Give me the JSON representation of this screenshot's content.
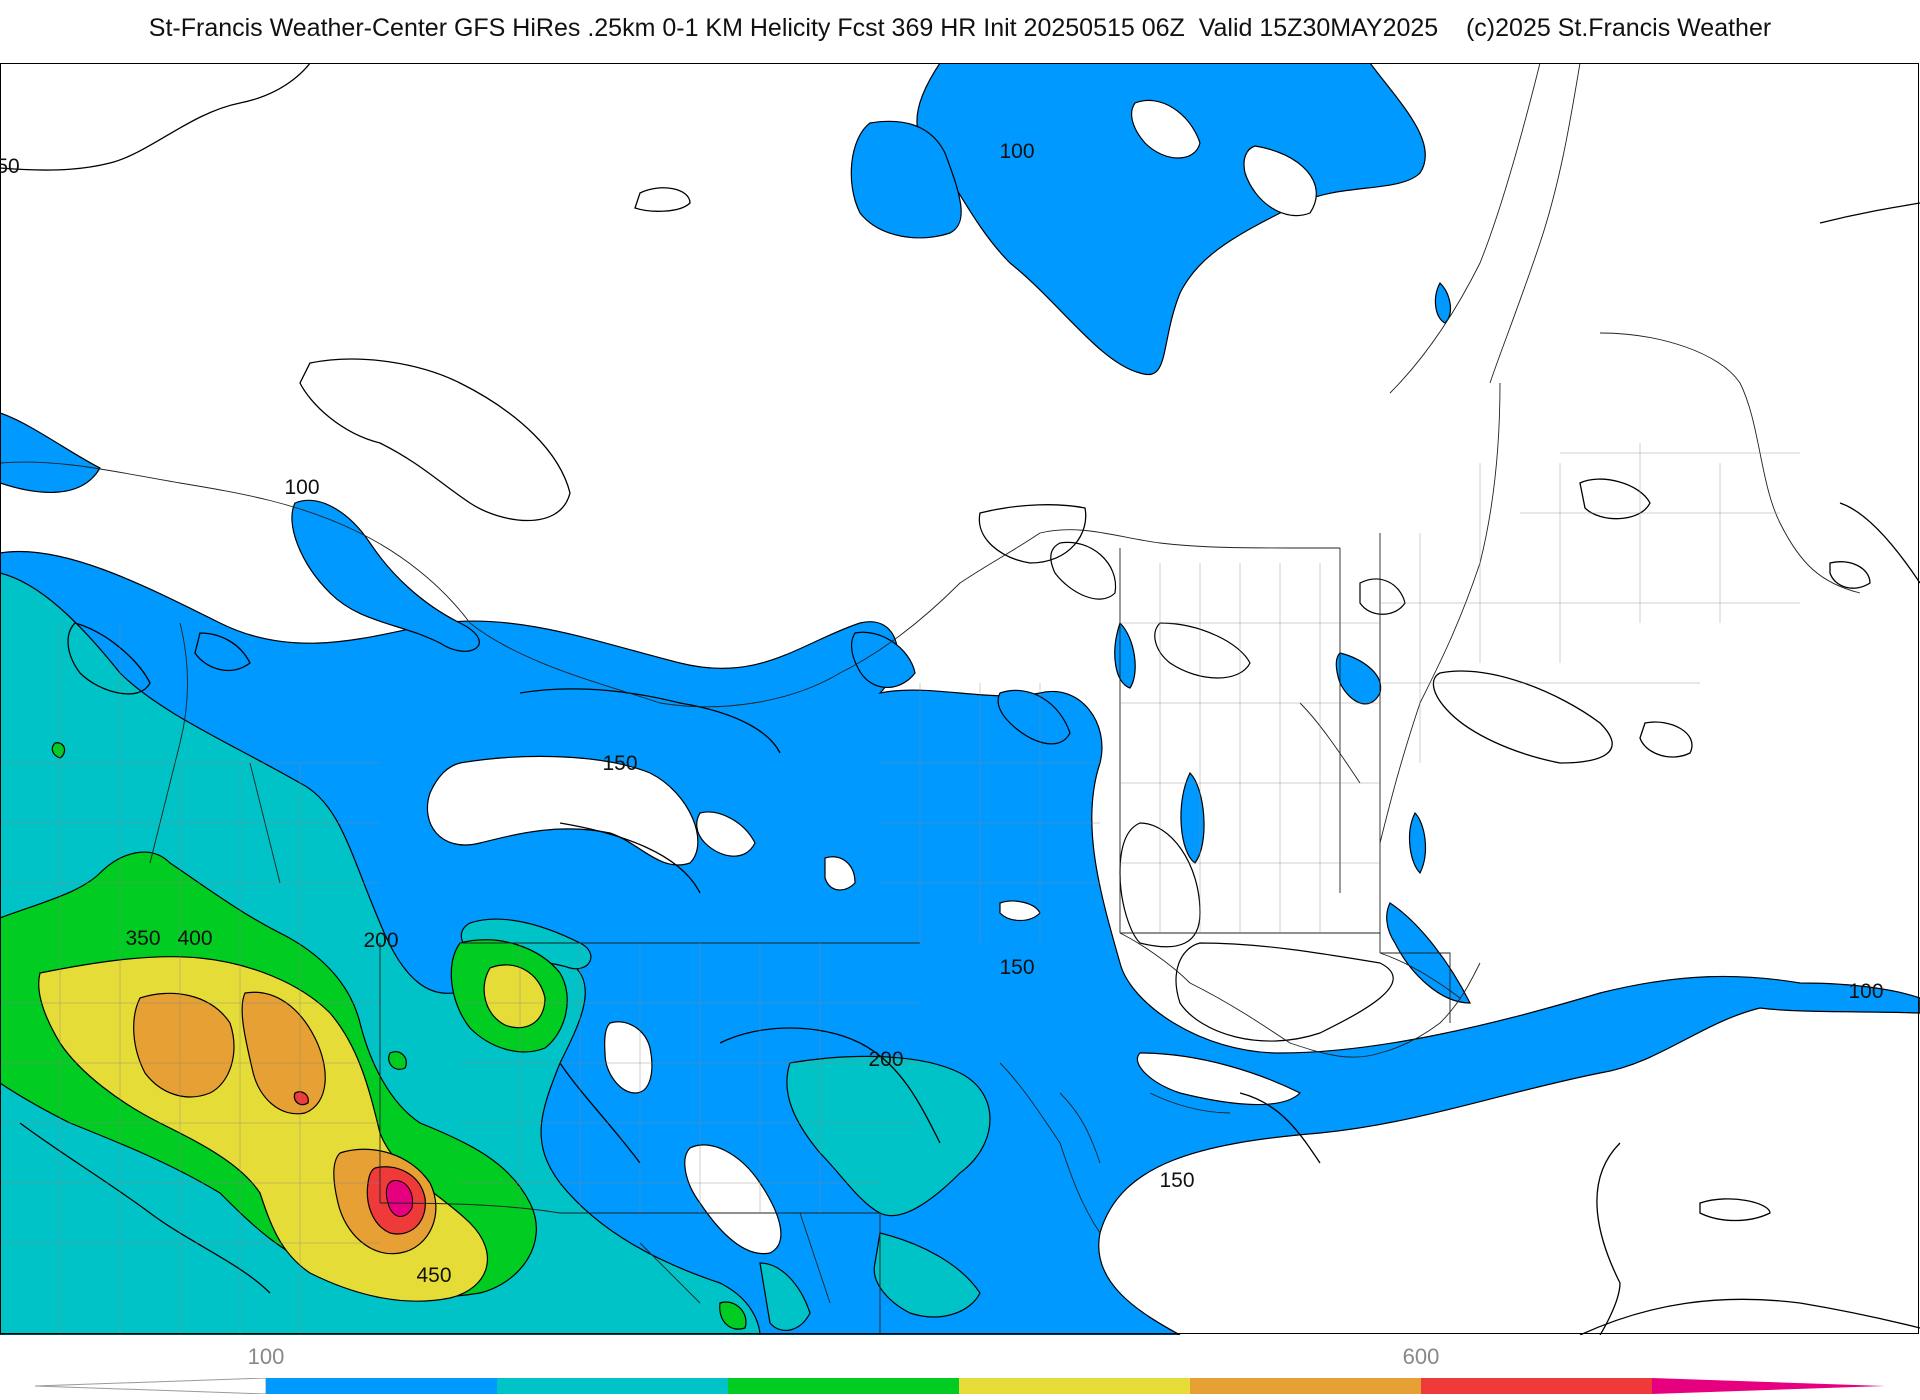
{
  "title": "St-Francis Weather-Center GFS HiRes .25km 0-1 KM Helicity Fcst 369 HR Init 20250515 06Z  Valid 15Z30MAY2025    (c)2025 St.Francis Weather",
  "contour_labels": [
    "50",
    "100",
    "100",
    "150",
    "350",
    "400",
    "200",
    "150",
    "200",
    "150",
    "450",
    "100"
  ],
  "colorbar": {
    "tick_labels": [
      "100",
      "600"
    ],
    "colors": [
      "#0099ff",
      "#00c3c8",
      "#00cc22",
      "#e6dc37",
      "#e6a034",
      "#ef3a3a",
      "#e60080"
    ]
  },
  "fill_colors": {
    "blue": "#0099ff",
    "teal": "#00c3c8",
    "green": "#00cc22",
    "yellow": "#e6dc37",
    "orange": "#e6a034",
    "red": "#ef3a3a",
    "magenta": "#e60080"
  }
}
